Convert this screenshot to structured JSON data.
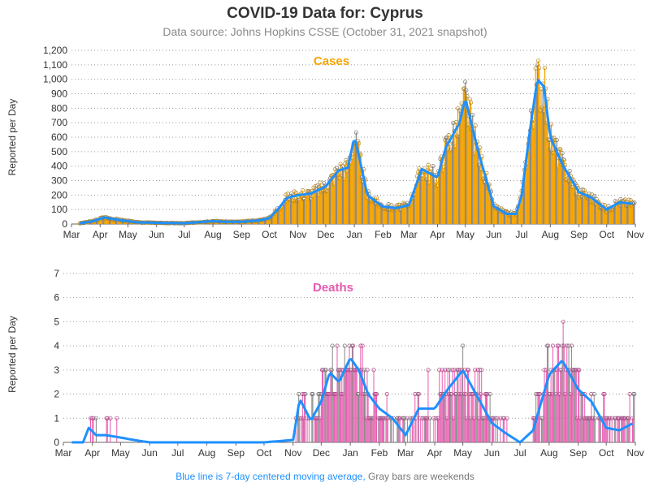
{
  "header": {
    "title": "COVID-19 Data for: Cyprus",
    "subtitle": "Data source: Johns Hopkins CSSE (October 31, 2021 snapshot)"
  },
  "footnote": {
    "blue_part": "Blue line is 7-day centered moving average,",
    "gray_part": "Gray bars are weekends"
  },
  "colors": {
    "cases_bar": "#f5a400",
    "deaths_bar": "#e85ab0",
    "weekend_bar": "#888888",
    "moving_average": "#1e90ff",
    "cases_label": "#f5a400",
    "deaths_label": "#e85ab0"
  },
  "chart_data": [
    {
      "type": "bar",
      "label": "Cases",
      "ylabel": "Reported per Day",
      "x_ticks": [
        "Mar",
        "Apr",
        "May",
        "Jun",
        "Jul",
        "Aug",
        "Sep",
        "Oct",
        "Nov",
        "Dec",
        "Jan",
        "Feb",
        "Mar",
        "Apr",
        "May",
        "Jun",
        "Jul",
        "Aug",
        "Sep",
        "Oct",
        "Nov"
      ],
      "y_ticks": [
        "0",
        "100",
        "200",
        "300",
        "400",
        "500",
        "600",
        "700",
        "800",
        "900",
        "1,000",
        "1,100",
        "1,200"
      ],
      "ylim": [
        0,
        1200
      ],
      "grid": "horizontal dotted",
      "series": [
        {
          "name": "Cases",
          "x": [
            "2020-03-10",
            "2020-03-25",
            "2020-04-05",
            "2020-04-20",
            "2020-05-10",
            "2020-06-01",
            "2020-07-01",
            "2020-08-01",
            "2020-08-15",
            "2020-09-01",
            "2020-09-20",
            "2020-10-01",
            "2020-10-10",
            "2020-10-20",
            "2020-11-01",
            "2020-11-15",
            "2020-12-01",
            "2020-12-15",
            "2020-12-25",
            "2021-01-01",
            "2021-01-05",
            "2021-01-15",
            "2021-02-01",
            "2021-02-15",
            "2021-03-01",
            "2021-03-15",
            "2021-04-01",
            "2021-04-10",
            "2021-04-25",
            "2021-05-01",
            "2021-05-15",
            "2021-06-01",
            "2021-06-15",
            "2021-06-25",
            "2021-07-01",
            "2021-07-10",
            "2021-07-18",
            "2021-07-25",
            "2021-08-01",
            "2021-08-15",
            "2021-09-01",
            "2021-09-15",
            "2021-10-01",
            "2021-10-15",
            "2021-10-30"
          ],
          "values": [
            5,
            20,
            45,
            30,
            12,
            8,
            5,
            20,
            15,
            15,
            25,
            40,
            100,
            180,
            200,
            210,
            260,
            370,
            390,
            600,
            500,
            200,
            120,
            110,
            130,
            380,
            320,
            530,
            700,
            870,
            500,
            120,
            70,
            70,
            200,
            650,
            1000,
            950,
            600,
            400,
            220,
            180,
            100,
            150,
            140
          ]
        }
      ]
    },
    {
      "type": "bar",
      "label": "Deaths",
      "ylabel": "Reported per Day",
      "x_ticks": [
        "Mar",
        "Apr",
        "May",
        "Jun",
        "Jul",
        "Aug",
        "Sep",
        "Oct",
        "Nov",
        "Dec",
        "Jan",
        "Feb",
        "Mar",
        "Apr",
        "May",
        "Jun",
        "Jul",
        "Aug",
        "Sep",
        "Oct",
        "Nov"
      ],
      "y_ticks": [
        "0",
        "1",
        "2",
        "3",
        "4",
        "5",
        "6",
        "7"
      ],
      "ylim": [
        0,
        7.3
      ],
      "grid": "horizontal dotted",
      "series": [
        {
          "name": "Deaths",
          "x": [
            "2020-03-10",
            "2020-03-22",
            "2020-03-28",
            "2020-04-05",
            "2020-04-15",
            "2020-05-01",
            "2020-05-15",
            "2020-06-01",
            "2020-07-01",
            "2020-08-01",
            "2020-09-01",
            "2020-10-01",
            "2020-11-01",
            "2020-11-08",
            "2020-11-20",
            "2020-12-01",
            "2020-12-10",
            "2020-12-20",
            "2021-01-01",
            "2021-01-10",
            "2021-01-20",
            "2021-02-01",
            "2021-02-15",
            "2021-03-01",
            "2021-03-15",
            "2021-04-01",
            "2021-04-15",
            "2021-05-01",
            "2021-05-15",
            "2021-06-01",
            "2021-06-15",
            "2021-07-01",
            "2021-07-15",
            "2021-08-01",
            "2021-08-15",
            "2021-09-01",
            "2021-09-15",
            "2021-10-01",
            "2021-10-15",
            "2021-10-30"
          ],
          "values": [
            0,
            0,
            0.6,
            0.3,
            0.3,
            0.2,
            0.1,
            0,
            0,
            0,
            0,
            0,
            0.1,
            1.8,
            0.9,
            1.7,
            2.9,
            2.5,
            3.5,
            3.0,
            2.0,
            1.4,
            1.0,
            0.3,
            1.4,
            1.4,
            2.2,
            3.0,
            2.0,
            0.8,
            0.4,
            0,
            0.5,
            2.8,
            3.4,
            2.2,
            1.7,
            0.6,
            0.5,
            0.8
          ]
        }
      ]
    }
  ]
}
